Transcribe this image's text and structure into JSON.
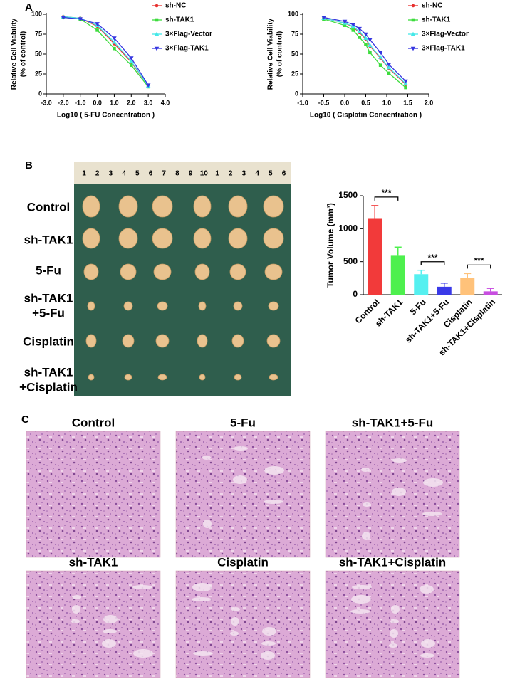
{
  "panels": [
    "A",
    "B",
    "C"
  ],
  "chart_data": [
    {
      "type": "line",
      "xlabel": "Log10 ( 5-FU Concentration )",
      "ylabel": [
        "Relative Cell Viability",
        "(% of control)"
      ],
      "x": [
        -2,
        -1,
        0,
        1,
        2,
        3
      ],
      "series": [
        {
          "name": "sh-NC",
          "color": "#e8302e",
          "marker": "circle",
          "values": [
            97,
            95,
            85,
            63,
            40,
            10
          ]
        },
        {
          "name": "sh-TAK1",
          "color": "#3ddc3d",
          "marker": "square",
          "values": [
            96,
            94,
            80,
            57,
            36,
            9
          ]
        },
        {
          "name": "3×Flag-Vector",
          "color": "#44e8e8",
          "marker": "triangle-up",
          "values": [
            97,
            95,
            86,
            65,
            41,
            10
          ]
        },
        {
          "name": "3×Flag-TAK1",
          "color": "#3535e0",
          "marker": "triangle-down",
          "values": [
            96,
            94,
            88,
            70,
            45,
            11
          ]
        }
      ],
      "xlim": [
        -3,
        4
      ],
      "xticks": [
        {
          "value": -3,
          "label": "-3.0"
        },
        {
          "value": -2,
          "label": "-2.0"
        },
        {
          "value": -1,
          "label": "-1.0"
        },
        {
          "value": 0,
          "label": "0.0"
        },
        {
          "value": 1,
          "label": "1.0"
        },
        {
          "value": 2,
          "label": "2.0"
        },
        {
          "value": 3,
          "label": "3.0"
        },
        {
          "value": 4,
          "label": "4.0"
        }
      ],
      "ylim": [
        0,
        100
      ],
      "yticks": [
        0,
        25,
        50,
        75,
        100
      ],
      "legend": "right"
    },
    {
      "type": "line",
      "xlabel": "Log10 ( Cisplatin Concentration )",
      "ylabel": [
        "Relative Cell Viability",
        "(% of control)"
      ],
      "x": [
        -0.5,
        0,
        0.2,
        0.35,
        0.5,
        0.6,
        0.85,
        1.05,
        1.45
      ],
      "series": [
        {
          "name": "sh-NC",
          "color": "#e8302e",
          "marker": "circle",
          "values": [
            95,
            89,
            84,
            77,
            69,
            60,
            45,
            32,
            12
          ]
        },
        {
          "name": "sh-TAK1",
          "color": "#3ddc3d",
          "marker": "square",
          "values": [
            94,
            86,
            80,
            71,
            62,
            52,
            36,
            26,
            8
          ]
        },
        {
          "name": "3×Flag-Vector",
          "color": "#44e8e8",
          "marker": "triangle-up",
          "values": [
            95,
            89,
            85,
            78,
            70,
            61,
            46,
            33,
            13
          ]
        },
        {
          "name": "3×Flag-TAK1",
          "color": "#3535e0",
          "marker": "triangle-down",
          "values": [
            96,
            91,
            87,
            82,
            75,
            68,
            52,
            37,
            16
          ]
        }
      ],
      "xlim": [
        -1,
        2
      ],
      "xticks": [
        {
          "value": -1,
          "label": "-1.0"
        },
        {
          "value": -0.5,
          "label": "-0.5"
        },
        {
          "value": 0,
          "label": "0.0"
        },
        {
          "value": 0.5,
          "label": "0.5"
        },
        {
          "value": 1,
          "label": "1.0"
        },
        {
          "value": 1.5,
          "label": "1.5"
        },
        {
          "value": 2,
          "label": "2.0"
        }
      ],
      "ylim": [
        0,
        100
      ],
      "yticks": [
        0,
        25,
        50,
        75,
        100
      ],
      "legend": "right"
    },
    {
      "type": "bar",
      "ylabel": "Tumor Volume (mm³)",
      "categories": [
        "Control",
        "sh-TAK1",
        "5-Fu",
        "sh-TAK1+5-Fu",
        "Cisplatin",
        "sh-TAK1+Cisplatin"
      ],
      "values": [
        1160,
        600,
        310,
        120,
        250,
        50
      ],
      "errors": [
        190,
        120,
        60,
        55,
        70,
        45
      ],
      "colors": [
        "#f23a3a",
        "#4ef04e",
        "#55f0f0",
        "#3a3ae8",
        "#ffc27a",
        "#c84ee0"
      ],
      "ylim": [
        0,
        1500
      ],
      "yticks": [
        0,
        500,
        1000,
        1500
      ],
      "significance": [
        {
          "pair": [
            "Control",
            "sh-TAK1"
          ],
          "label": "***"
        },
        {
          "pair": [
            "5-Fu",
            "sh-TAK1+5-Fu"
          ],
          "label": "***"
        },
        {
          "pair": [
            "Cisplatin",
            "sh-TAK1+Cisplatin"
          ],
          "label": "***"
        }
      ]
    }
  ],
  "photo": {
    "ruler": [
      "1",
      "2",
      "3",
      "4",
      "5",
      "6",
      "7",
      "8",
      "9",
      "10",
      "1",
      "2",
      "3",
      "4",
      "5",
      "6"
    ],
    "rows": [
      [
        "Control"
      ],
      [
        "sh-TAK1"
      ],
      [
        "5-Fu"
      ],
      [
        "sh-TAK1",
        "+5-Fu"
      ],
      [
        "Cisplatin"
      ],
      [
        "sh-TAK1",
        "+Cisplatin"
      ]
    ]
  },
  "histology": {
    "titles": [
      "Control",
      "5-Fu",
      "sh-TAK1+5-Fu",
      "sh-TAK1",
      "Cisplatin",
      "sh-TAK1+Cisplatin"
    ]
  }
}
